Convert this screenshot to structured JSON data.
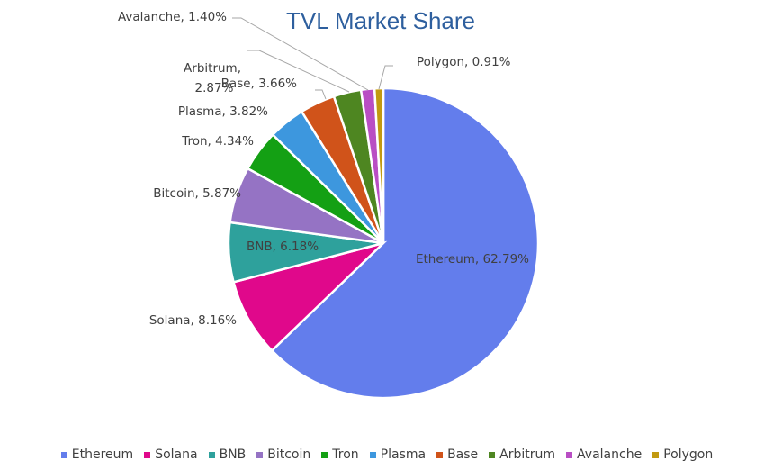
{
  "chart_data": {
    "type": "pie",
    "title": "TVL Market Share",
    "categories": [
      "Ethereum",
      "Solana",
      "BNB",
      "Bitcoin",
      "Tron",
      "Plasma",
      "Base",
      "Arbitrum",
      "Avalanche",
      "Polygon"
    ],
    "values": [
      62.79,
      8.16,
      6.18,
      5.87,
      4.34,
      3.82,
      3.66,
      2.87,
      1.4,
      0.91
    ],
    "labels": [
      "Ethereum, 62.79%",
      "Solana, 8.16%",
      "BNB, 6.18%",
      "Bitcoin, 5.87%",
      "Tron, 4.34%",
      "Plasma, 3.82%",
      "Base, 3.66%",
      "Arbitrum,",
      "Avalanche, 1.40%",
      "Polygon, 0.91%"
    ],
    "label_extra": {
      "arbitrum_line2": "2.87%"
    },
    "colors": [
      "#637dec",
      "#e0088b",
      "#2ea19c",
      "#9573c4",
      "#14a014",
      "#3d97de",
      "#d0531a",
      "#4e8621",
      "#b94ec4",
      "#c29a10"
    ],
    "start_angle_deg": 0,
    "direction": "clockwise",
    "legend_position": "bottom"
  }
}
